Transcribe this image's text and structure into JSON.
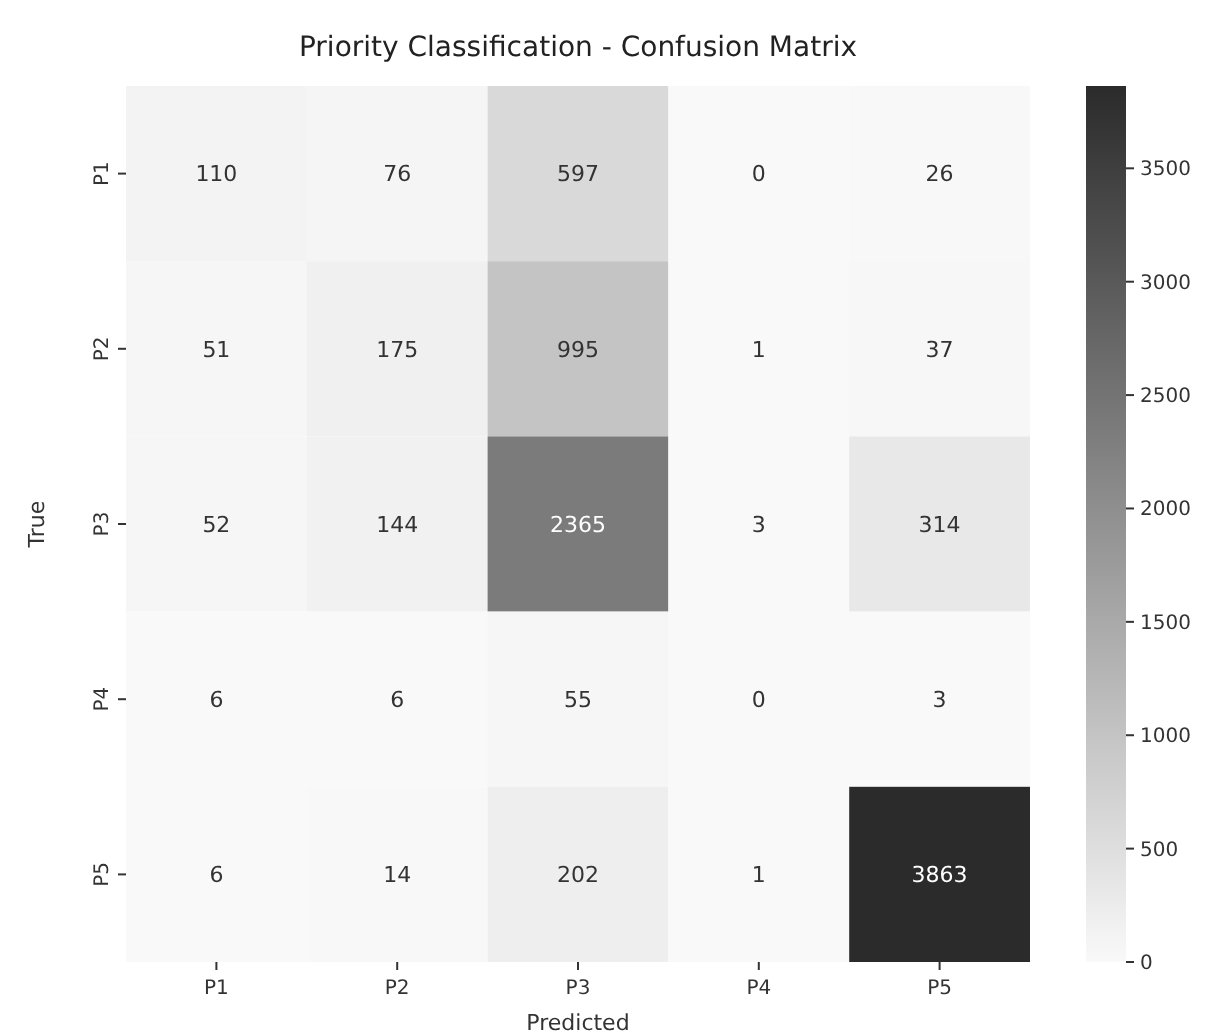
{
  "chart_data": {
    "type": "heatmap",
    "title": "Priority Classification - Confusion Matrix",
    "xlabel": "Predicted",
    "ylabel": "True",
    "categories": [
      "P1",
      "P2",
      "P3",
      "P4",
      "P5"
    ],
    "y_categories": [
      "P1",
      "P2",
      "P3",
      "P4",
      "P5"
    ],
    "cells": [
      [
        110,
        76,
        597,
        0,
        26
      ],
      [
        51,
        175,
        995,
        1,
        37
      ],
      [
        52,
        144,
        2365,
        3,
        314
      ],
      [
        6,
        6,
        55,
        0,
        3
      ],
      [
        6,
        14,
        202,
        1,
        3863
      ]
    ],
    "clim": [
      0,
      3863
    ],
    "cticks": [
      0,
      500,
      1000,
      1500,
      2000,
      2500,
      3000,
      3500
    ],
    "data_labels": true
  }
}
